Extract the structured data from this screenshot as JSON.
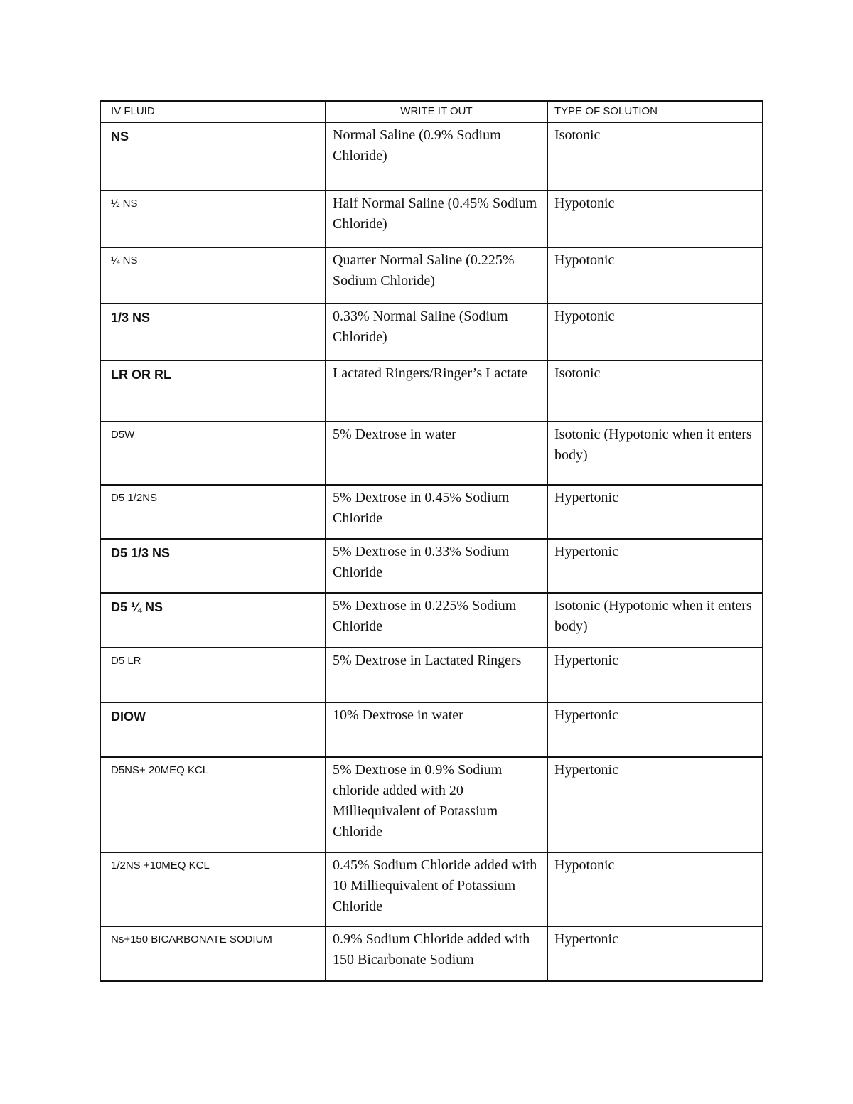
{
  "table": {
    "headers": [
      "IV FLUID",
      "WRITE IT OUT",
      "TYPE OF SOLUTION"
    ],
    "rows": [
      {
        "fluid": "NS",
        "write_out": "Normal Saline (0.9% Sodium Chloride)",
        "type": "Isotonic"
      },
      {
        "fluid": "½ NS",
        "write_out": "Half Normal Saline (0.45% Sodium Chloride)",
        "type": "Hypotonic"
      },
      {
        "fluid": "¼ NS",
        "write_out": "Quarter Normal Saline (0.225% Sodium Chloride)",
        "type": "Hypotonic"
      },
      {
        "fluid": "1/3 NS",
        "write_out": "0.33% Normal Saline (Sodium Chloride)",
        "type": "Hypotonic"
      },
      {
        "fluid": "LR OR RL",
        "write_out": "Lactated Ringers/Ringer’s Lactate",
        "type": "Isotonic"
      },
      {
        "fluid": "D5W",
        "write_out": "5% Dextrose in water",
        "type": "Isotonic (Hypotonic when it enters body)"
      },
      {
        "fluid": "D5 1/2NS",
        "write_out": "5% Dextrose in 0.45% Sodium Chloride",
        "type": "Hypertonic"
      },
      {
        "fluid": "D5 1/3 NS",
        "write_out": "5% Dextrose in 0.33% Sodium Chloride",
        "type": "Hypertonic"
      },
      {
        "fluid": "D5 ¼ NS",
        "write_out": "5% Dextrose in 0.225% Sodium Chloride",
        "type": "Isotonic (Hypotonic when it enters body)"
      },
      {
        "fluid": "D5 LR",
        "write_out": "5% Dextrose in Lactated Ringers",
        "type": "Hypertonic"
      },
      {
        "fluid": "DIOW",
        "write_out": "10% Dextrose in water",
        "type": "Hypertonic"
      },
      {
        "fluid": "D5NS+ 20MEQ KCL",
        "write_out": "5% Dextrose in 0.9% Sodium chloride added with 20 Milliequivalent of Potassium Chloride",
        "type": "Hypertonic"
      },
      {
        "fluid": "1/2NS +10MEQ KCL",
        "write_out": "0.45% Sodium Chloride added with 10 Milliequivalent of Potassium Chloride",
        "type": "Hypotonic"
      },
      {
        "fluid": "Ns+150 BICARBONATE SODIUM",
        "write_out": "0.9% Sodium Chloride added with 150 Bicarbonate Sodium",
        "type": "Hypertonic"
      }
    ]
  }
}
